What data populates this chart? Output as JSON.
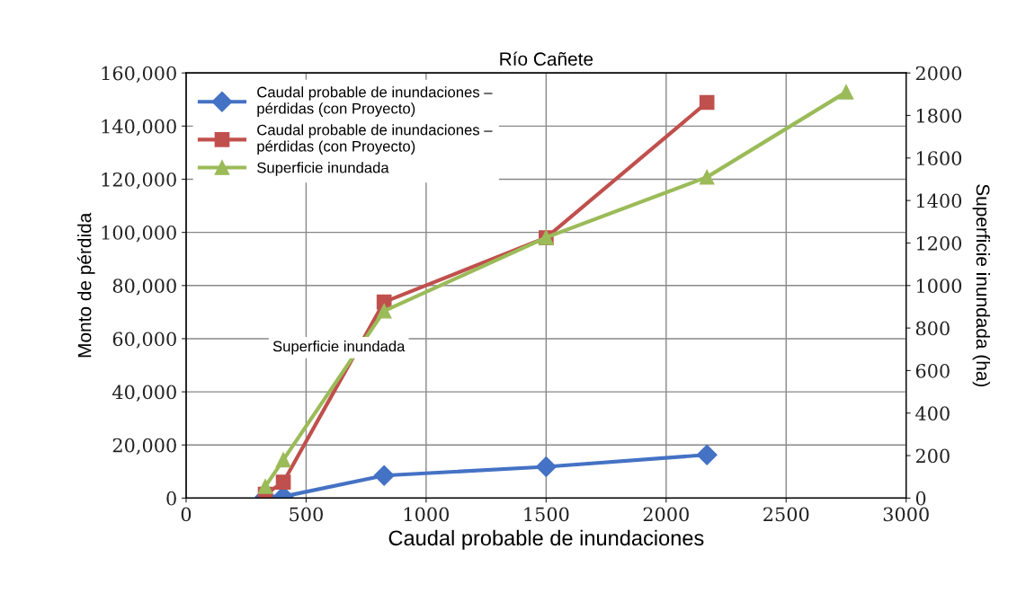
{
  "chart_data": {
    "type": "line",
    "title": "Río Cañete",
    "xlabel": "Caudal probable de inundaciones",
    "ylabel": "Monto de pérdida",
    "y2label": "Superficie inundada (ha)",
    "xlim": [
      0,
      3000
    ],
    "xticks": [
      0,
      500,
      1000,
      1500,
      2000,
      2500,
      3000
    ],
    "ylim": [
      0,
      160000
    ],
    "yticks": [
      {
        "value": 0,
        "label": "0"
      },
      {
        "value": 20000,
        "label": "20,000"
      },
      {
        "value": 40000,
        "label": "40,000"
      },
      {
        "value": 60000,
        "label": "60,000"
      },
      {
        "value": 80000,
        "label": "80,000"
      },
      {
        "value": 100000,
        "label": "100,000"
      },
      {
        "value": 120000,
        "label": "120,000"
      },
      {
        "value": 140000,
        "label": "140,000"
      },
      {
        "value": 160000,
        "label": "160,000"
      }
    ],
    "y2lim": [
      0,
      2000
    ],
    "y2ticks": [
      0,
      200,
      400,
      600,
      800,
      1000,
      1200,
      1400,
      1600,
      1800,
      2000
    ],
    "grid": true,
    "legend": "top left",
    "annotations": [
      "Superficie inundada"
    ],
    "series": [
      {
        "name": "Caudal probable de inundaciones – pérdidas (con Proyecto)",
        "color": "#4472c4",
        "marker": "diamond",
        "x": [
          330,
          405,
          825,
          1500,
          2170
        ],
        "values": [
          500,
          600,
          8500,
          11800,
          16300
        ]
      },
      {
        "name": "Caudal probable de inundaciones – pérdidas (con Proyecto)",
        "color": "#c0504d",
        "marker": "square",
        "x": [
          330,
          405,
          825,
          1500,
          2170
        ],
        "values": [
          1500,
          6000,
          73800,
          98000,
          148900
        ]
      },
      {
        "name": "Superficie inundada",
        "color": "#9bbb59",
        "marker": "triangle",
        "axis": "y2",
        "x": [
          330,
          405,
          825,
          1500,
          2170,
          2750
        ],
        "values": [
          55,
          180,
          880,
          1226,
          1510,
          1910
        ]
      }
    ]
  }
}
